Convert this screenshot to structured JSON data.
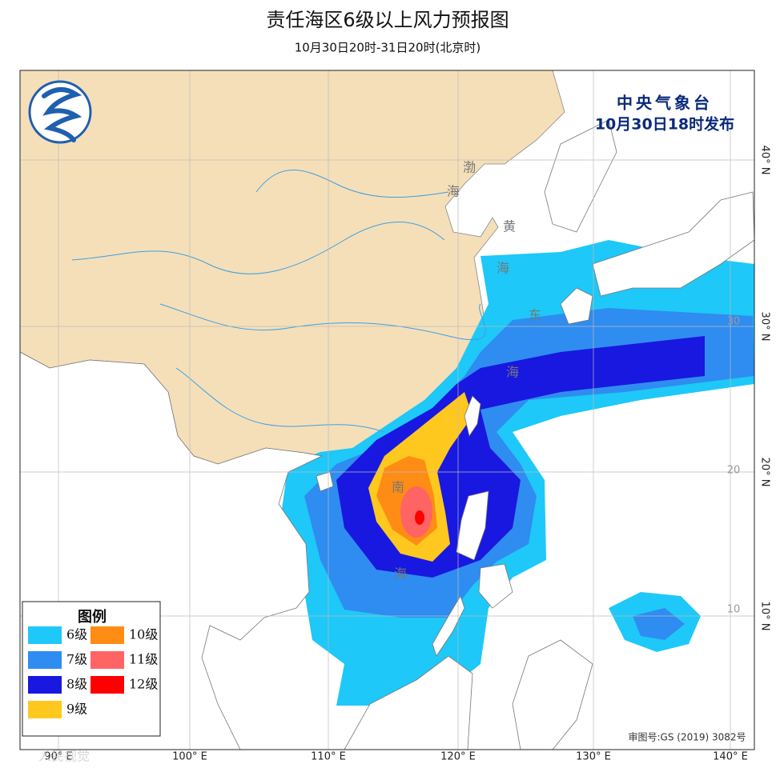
{
  "header": {
    "title": "责任海区6级以上风力预报图",
    "subtitle": "10月30日20时-31日20时(北京时)"
  },
  "issuer": {
    "agency": "中央气象台",
    "issued": "10月30日18时发布"
  },
  "seas": [
    [
      "渤",
      "海"
    ],
    [
      "黄",
      "海"
    ],
    [
      "东",
      "海"
    ],
    [
      "南",
      "海"
    ]
  ],
  "legend": {
    "title": "图例",
    "items": [
      {
        "label": "6级",
        "color": "#1ec8f8"
      },
      {
        "label": "7级",
        "color": "#2f8cf0"
      },
      {
        "label": "8级",
        "color": "#1818e0"
      },
      {
        "label": "9级",
        "color": "#ffc81e"
      },
      {
        "label": "10级",
        "color": "#ff8c14"
      },
      {
        "label": "11级",
        "color": "#ff6464"
      },
      {
        "label": "12级",
        "color": "#ff0000"
      }
    ]
  },
  "lon_labels": [
    "90° E",
    "100° E",
    "110° E",
    "120° E",
    "130° E",
    "140° E"
  ],
  "lat_labels": [
    "40° N",
    "30° N",
    "20° N",
    "10° N"
  ],
  "inner_lat_labels": [
    "30",
    "20",
    "10"
  ],
  "review_number": "审图号:GS (2019) 3082号",
  "watermark": "人民视觉"
}
